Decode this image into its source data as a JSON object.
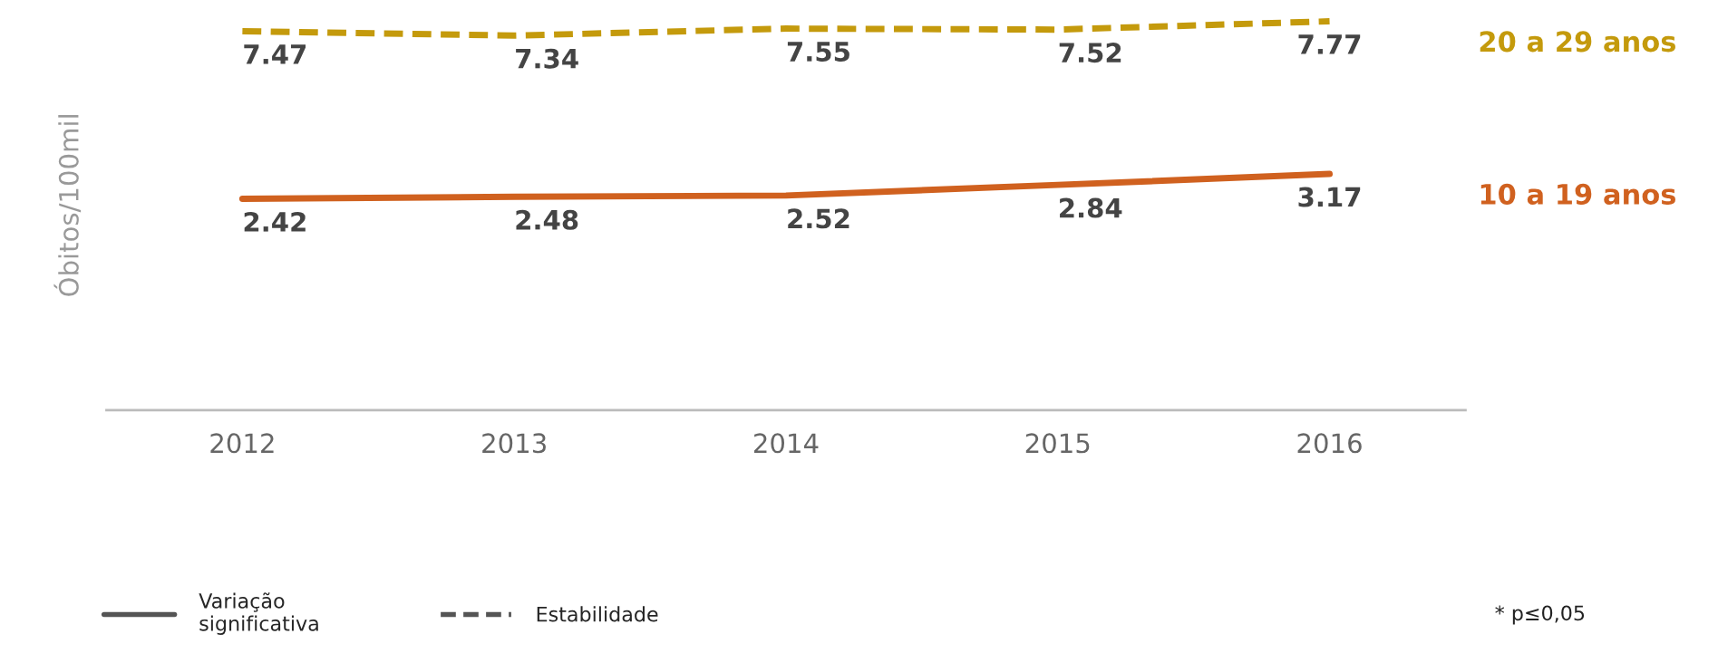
{
  "chart_data": {
    "type": "line",
    "ylabel": "Óbitos/100mil",
    "categories": [
      "2012",
      "2013",
      "2014",
      "2015",
      "2016"
    ],
    "series": [
      {
        "name": "20 a 29 anos",
        "color": "#c49a0c",
        "values": [
          7.47,
          7.34,
          7.55,
          7.52,
          7.77
        ],
        "line_style": "dashed"
      },
      {
        "name": "10 a 19 anos",
        "color": "#d0611f",
        "values": [
          2.42,
          2.48,
          2.52,
          2.84,
          3.17
        ],
        "line_style": "solid"
      }
    ],
    "data_labels": true,
    "tick_labels": "x",
    "grid": false,
    "legend": "right",
    "marker": "none",
    "annotations": [
      "Variação\nsignificativa",
      "Estabilidade",
      "* p≤0,05"
    ]
  }
}
